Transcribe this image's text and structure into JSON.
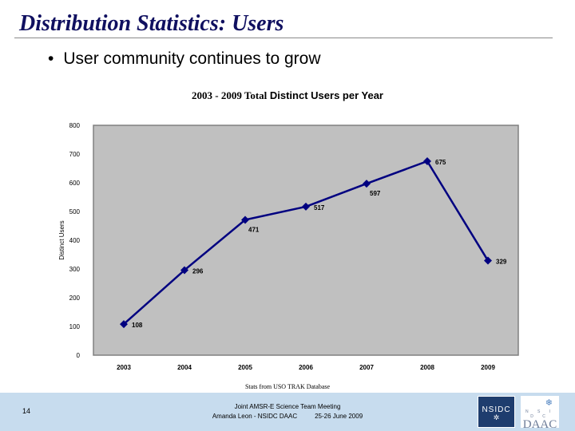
{
  "slide": {
    "title": "Distribution Statistics: Users",
    "bullet": "User community continues to grow",
    "source_note": "Stats from USO TRAK Database"
  },
  "footer": {
    "page_number": "14",
    "meeting": "Joint AMSR-E Science Team Meeting",
    "presenter": "Amanda Leon - NSIDC DAAC",
    "date": "25-26 June 2009",
    "logo_left_text": "NSIDC",
    "logo_right_small": "N S I D C",
    "logo_right_big": "DAAC"
  },
  "chart_data": {
    "type": "line",
    "title": "2003 - 2009 Total Distinct Users per Year",
    "title_part1": "2003 - 2009 Total",
    "title_part2": " Distinct Users per Year",
    "xlabel": "",
    "ylabel": "Distinct Users",
    "categories": [
      "2003",
      "2004",
      "2005",
      "2006",
      "2007",
      "2008",
      "2009"
    ],
    "series": [
      {
        "name": "Distinct Users",
        "values": [
          108,
          296,
          471,
          517,
          597,
          675,
          329
        ],
        "color": "#000080"
      }
    ],
    "data_labels": [
      "108",
      "296",
      "471",
      "517",
      "597",
      "675",
      "329"
    ],
    "ylim": [
      0,
      800
    ],
    "yticks": [
      0,
      100,
      200,
      300,
      400,
      500,
      600,
      700,
      800
    ],
    "grid": false,
    "legend": "none",
    "marker": "diamond",
    "plot_background": "#c0c0c0"
  }
}
